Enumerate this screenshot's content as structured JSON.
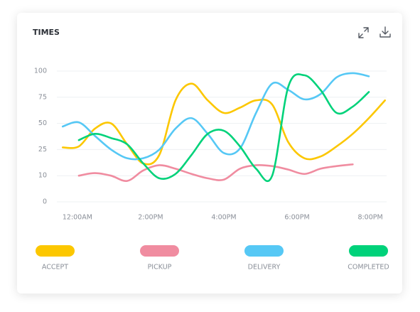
{
  "chart_data": {
    "type": "line",
    "title": "TIMES",
    "x": [
      -0.2,
      0.02,
      0.24,
      0.46,
      0.68,
      0.9,
      1.12,
      1.34,
      1.56,
      1.78,
      2,
      2.22,
      2.44,
      2.66,
      2.88,
      3.1,
      3.32,
      3.54,
      3.76,
      3.98,
      4.2
    ],
    "xlim": [
      -0.28,
      4.3
    ],
    "xticks": [
      {
        "value": 0,
        "label": "12:00AM"
      },
      {
        "value": 1,
        "label": "2:00PM"
      },
      {
        "value": 2,
        "label": "4:00PM"
      },
      {
        "value": 3,
        "label": "6:00PM"
      },
      {
        "value": 4,
        "label": "8:00PM"
      }
    ],
    "ylim": [
      0,
      100
    ],
    "yticks": [
      0,
      10,
      25,
      50,
      75,
      100
    ],
    "grid": true,
    "series": [
      {
        "name": "ACCEPT",
        "color": "#fcc700",
        "values": [
          27,
          28,
          45,
          50,
          30,
          17,
          22,
          72,
          88,
          72,
          60,
          65,
          72,
          68,
          32,
          20,
          21,
          28,
          40,
          55,
          72
        ]
      },
      {
        "name": "PICKUP",
        "color": "#f08ca0",
        "values": [
          null,
          10,
          11.5,
          10,
          8,
          13,
          16,
          14,
          11,
          9,
          8.5,
          14,
          16,
          15.5,
          13.5,
          11,
          14,
          15.5,
          16.5,
          null,
          null
        ]
      },
      {
        "name": "DELIVERY",
        "color": "#56c8f5",
        "values": [
          47,
          51,
          38,
          25,
          20,
          20,
          25,
          45,
          55,
          40,
          23,
          26,
          60,
          88,
          82,
          73,
          78,
          94,
          98,
          95,
          null
        ]
      },
      {
        "name": "COMPLETED",
        "color": "#00d27a",
        "values": [
          null,
          34,
          40,
          36,
          30,
          17,
          9,
          11,
          22,
          40,
          43,
          28,
          14,
          10,
          85,
          96,
          82,
          60,
          66,
          80,
          null
        ]
      }
    ]
  }
}
